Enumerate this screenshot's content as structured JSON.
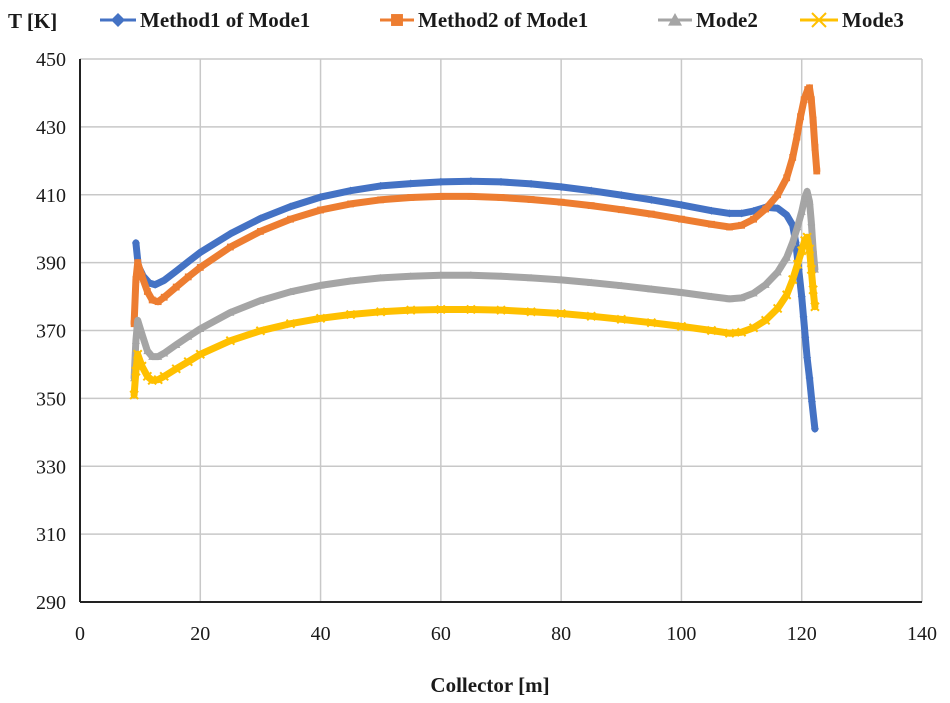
{
  "chart_data": {
    "type": "line",
    "title": "",
    "xlabel": "Collector [m]",
    "ylabel": "T [K]",
    "xlim": [
      0,
      140
    ],
    "ylim": [
      290,
      450
    ],
    "xticks": [
      "0",
      "20",
      "40",
      "60",
      "80",
      "100",
      "120",
      "140"
    ],
    "yticks": [
      "290",
      "310",
      "330",
      "350",
      "370",
      "390",
      "410",
      "430",
      "450"
    ],
    "grid": true,
    "legend_position": "top",
    "series": [
      {
        "name": "Method1 of Mode1",
        "color": "#4472C4",
        "marker": "diamond",
        "points": [
          [
            9.3,
            395.8
          ],
          [
            9.7,
            389
          ],
          [
            10.5,
            386
          ],
          [
            11.5,
            384
          ],
          [
            12.5,
            383.5
          ],
          [
            14,
            384.8
          ],
          [
            16,
            387.5
          ],
          [
            18,
            390.3
          ],
          [
            20,
            393
          ],
          [
            25,
            398.5
          ],
          [
            30,
            403
          ],
          [
            35,
            406.5
          ],
          [
            40,
            409.3
          ],
          [
            45,
            411.2
          ],
          [
            50,
            412.6
          ],
          [
            55,
            413.3
          ],
          [
            60,
            413.8
          ],
          [
            65,
            414
          ],
          [
            70,
            413.8
          ],
          [
            75,
            413.2
          ],
          [
            80,
            412.3
          ],
          [
            85,
            411.2
          ],
          [
            90,
            409.9
          ],
          [
            95,
            408.5
          ],
          [
            100,
            407
          ],
          [
            105,
            405.3
          ],
          [
            108,
            404.5
          ],
          [
            110,
            404.5
          ],
          [
            112,
            405.2
          ],
          [
            114,
            406.3
          ],
          [
            116,
            406
          ],
          [
            117.5,
            404
          ],
          [
            118.5,
            401
          ],
          [
            119,
            396
          ],
          [
            119.5,
            388
          ],
          [
            120,
            380
          ],
          [
            120.3,
            374
          ],
          [
            120.6,
            368
          ],
          [
            120.9,
            362
          ],
          [
            121.3,
            356
          ],
          [
            121.7,
            349
          ],
          [
            122.2,
            341
          ]
        ]
      },
      {
        "name": "Method2 of Mode1",
        "color": "#ED7D31",
        "marker": "square",
        "points": [
          [
            9.0,
            372
          ],
          [
            9.3,
            385
          ],
          [
            9.6,
            390
          ],
          [
            10.3,
            386
          ],
          [
            11.2,
            381.5
          ],
          [
            12,
            379
          ],
          [
            13,
            378.5
          ],
          [
            14,
            379.8
          ],
          [
            16,
            382.8
          ],
          [
            18,
            385.8
          ],
          [
            20,
            388.6
          ],
          [
            25,
            394.6
          ],
          [
            30,
            399.2
          ],
          [
            35,
            402.8
          ],
          [
            40,
            405.5
          ],
          [
            45,
            407.3
          ],
          [
            50,
            408.5
          ],
          [
            55,
            409.2
          ],
          [
            60,
            409.5
          ],
          [
            65,
            409.5
          ],
          [
            70,
            409.2
          ],
          [
            75,
            408.6
          ],
          [
            80,
            407.8
          ],
          [
            85,
            406.8
          ],
          [
            90,
            405.6
          ],
          [
            95,
            404.3
          ],
          [
            100,
            402.8
          ],
          [
            105,
            401.3
          ],
          [
            108,
            400.5
          ],
          [
            110,
            401
          ],
          [
            112,
            402.8
          ],
          [
            114,
            405.8
          ],
          [
            116,
            410
          ],
          [
            117.5,
            415
          ],
          [
            118.5,
            421
          ],
          [
            119.2,
            427
          ],
          [
            119.8,
            433
          ],
          [
            120.4,
            438
          ],
          [
            121,
            441
          ],
          [
            121.3,
            441.5
          ],
          [
            121.6,
            438
          ],
          [
            121.9,
            432
          ],
          [
            122.2,
            424
          ],
          [
            122.5,
            417
          ]
        ]
      },
      {
        "name": "Mode2",
        "color": "#A5A5A5",
        "marker": "triangle",
        "points": [
          [
            9.0,
            356
          ],
          [
            9.3,
            367
          ],
          [
            9.6,
            373
          ],
          [
            10.3,
            369
          ],
          [
            11.2,
            364
          ],
          [
            12,
            362.3
          ],
          [
            13,
            362.3
          ],
          [
            14,
            363.3
          ],
          [
            16,
            365.8
          ],
          [
            18,
            368.2
          ],
          [
            20,
            370.5
          ],
          [
            25,
            375.3
          ],
          [
            30,
            378.8
          ],
          [
            35,
            381.4
          ],
          [
            40,
            383.3
          ],
          [
            45,
            384.6
          ],
          [
            50,
            385.5
          ],
          [
            55,
            386
          ],
          [
            60,
            386.3
          ],
          [
            65,
            386.3
          ],
          [
            70,
            386
          ],
          [
            75,
            385.5
          ],
          [
            80,
            384.9
          ],
          [
            85,
            384.1
          ],
          [
            90,
            383.2
          ],
          [
            95,
            382.2
          ],
          [
            100,
            381.2
          ],
          [
            105,
            380
          ],
          [
            108,
            379.3
          ],
          [
            110,
            379.6
          ],
          [
            112,
            381
          ],
          [
            114,
            383.5
          ],
          [
            116,
            387.2
          ],
          [
            117.5,
            391.5
          ],
          [
            118.5,
            396
          ],
          [
            119.3,
            400.5
          ],
          [
            120,
            405
          ],
          [
            120.5,
            409
          ],
          [
            120.9,
            411
          ],
          [
            121.3,
            408
          ],
          [
            121.6,
            402
          ],
          [
            121.9,
            394
          ],
          [
            122.2,
            388
          ]
        ]
      },
      {
        "name": "Mode3",
        "color": "#FFC000",
        "marker": "x",
        "points": [
          [
            9.0,
            351
          ],
          [
            9.3,
            358
          ],
          [
            9.6,
            363
          ],
          [
            10.3,
            359.5
          ],
          [
            11.2,
            356.5
          ],
          [
            12,
            355.3
          ],
          [
            13,
            355.5
          ],
          [
            14,
            356.5
          ],
          [
            16,
            358.7
          ],
          [
            18,
            360.8
          ],
          [
            20,
            363
          ],
          [
            25,
            367
          ],
          [
            30,
            369.9
          ],
          [
            35,
            372
          ],
          [
            40,
            373.6
          ],
          [
            45,
            374.7
          ],
          [
            50,
            375.5
          ],
          [
            55,
            376
          ],
          [
            60,
            376.2
          ],
          [
            65,
            376.2
          ],
          [
            70,
            376
          ],
          [
            75,
            375.5
          ],
          [
            80,
            375
          ],
          [
            85,
            374.2
          ],
          [
            90,
            373.3
          ],
          [
            95,
            372.3
          ],
          [
            100,
            371.2
          ],
          [
            105,
            370
          ],
          [
            108,
            369.2
          ],
          [
            110,
            369.5
          ],
          [
            112,
            370.8
          ],
          [
            114,
            373
          ],
          [
            116,
            376.5
          ],
          [
            117.5,
            380.5
          ],
          [
            118.5,
            385
          ],
          [
            119.3,
            389.5
          ],
          [
            120,
            393.5
          ],
          [
            120.5,
            396.5
          ],
          [
            120.9,
            397.5
          ],
          [
            121.3,
            394
          ],
          [
            121.6,
            388
          ],
          [
            121.9,
            382
          ],
          [
            122.2,
            377
          ]
        ]
      }
    ]
  }
}
